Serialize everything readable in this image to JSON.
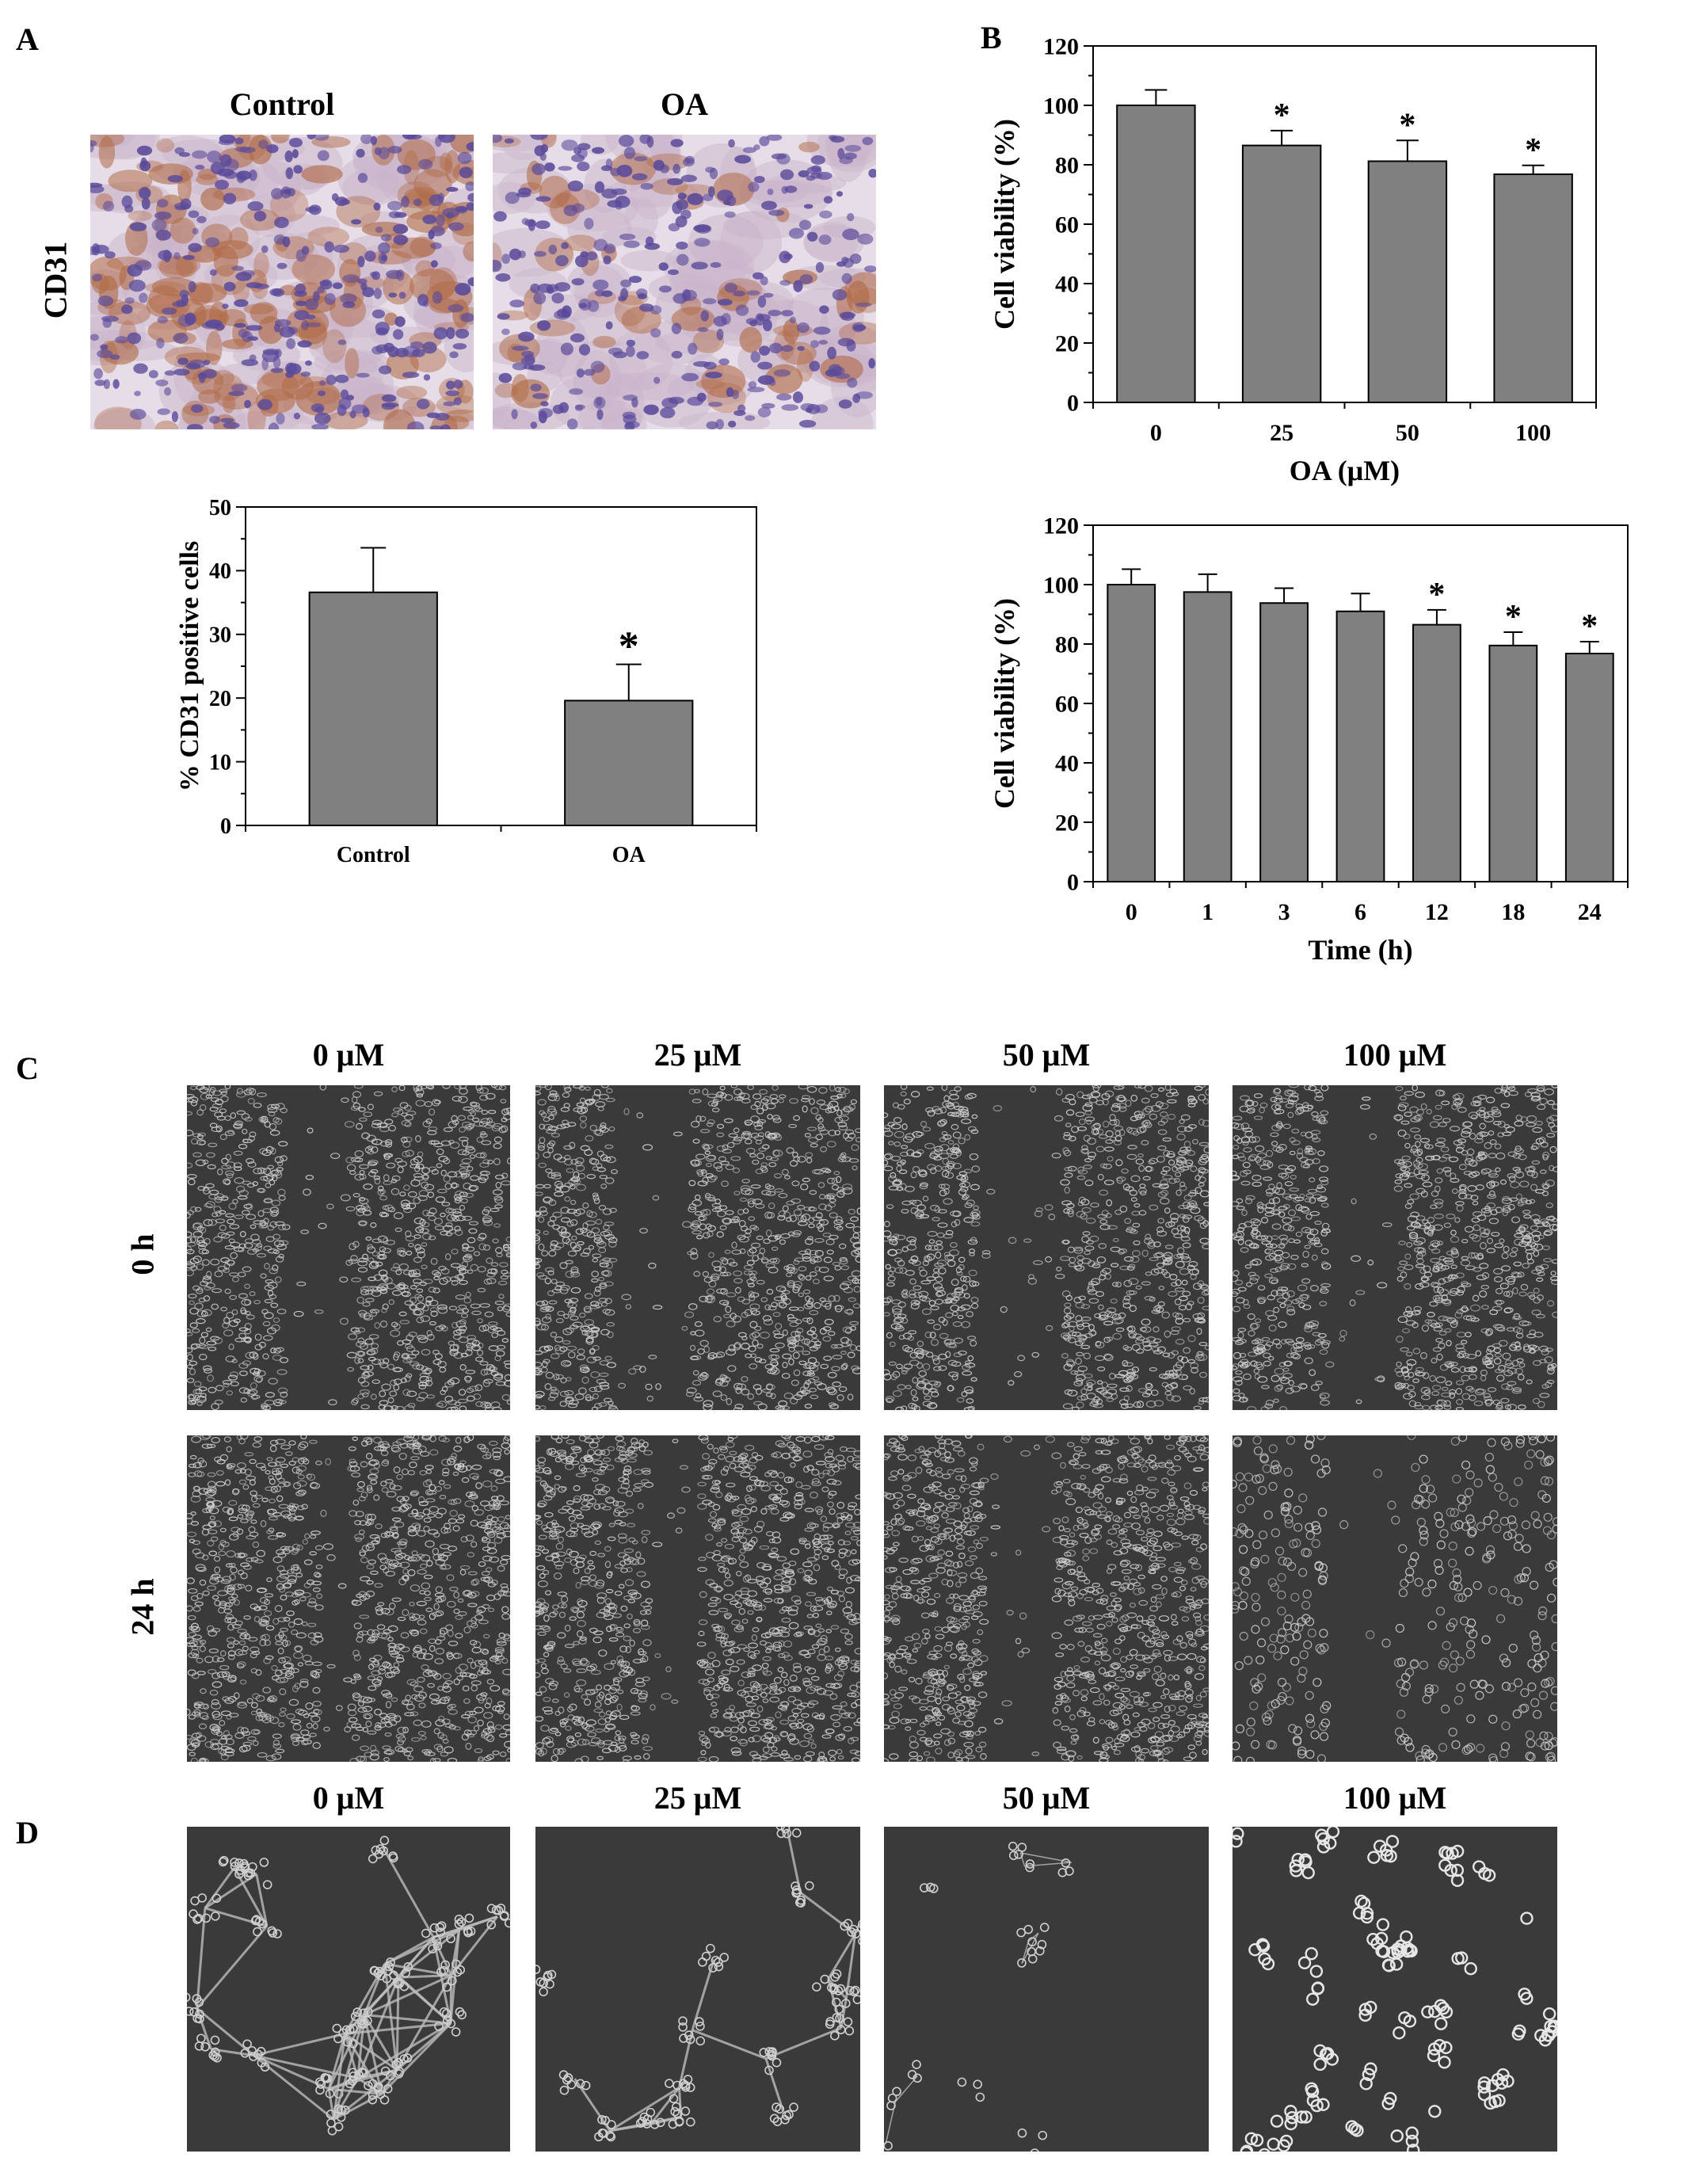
{
  "panels": {
    "a": {
      "letter": "A",
      "col_labels": [
        "Control",
        "OA"
      ],
      "row_label": "CD31"
    },
    "b": {
      "letter": "B"
    },
    "c": {
      "letter": "C",
      "col_labels": [
        "0 μM",
        "25 μM",
        "50 μM",
        "100 μM"
      ],
      "row_labels": [
        "0 h",
        "24 h"
      ]
    },
    "d": {
      "letter": "D",
      "col_labels": [
        "0 μM",
        "25 μM",
        "50 μM",
        "100 μM"
      ]
    }
  },
  "colors": {
    "bar_fill": "#808080",
    "tissue_bg": "#e6dde8",
    "nuclei": "#5a4a9a",
    "brown_stain": "#b06a45",
    "phase_bg": "#3a3a3a",
    "cell": "#cfcfcf"
  },
  "chart_data": [
    {
      "id": "cd31",
      "type": "bar",
      "categories": [
        "Control",
        "OA"
      ],
      "values": [
        36.6,
        19.6
      ],
      "errors": [
        7.0,
        5.7
      ],
      "significant": [
        false,
        true
      ],
      "significance_marker": "*",
      "ylabel": "% CD31 positive cells",
      "xlabel": "",
      "ylim": [
        0,
        50
      ],
      "yticks": [
        0,
        10,
        20,
        30,
        40,
        50
      ]
    },
    {
      "id": "viability-dose",
      "type": "bar",
      "categories": [
        "0",
        "25",
        "50",
        "100"
      ],
      "values": [
        100,
        86.5,
        81.2,
        76.8
      ],
      "errors": [
        5.2,
        5.0,
        7.0,
        3.0
      ],
      "significant": [
        false,
        true,
        true,
        true
      ],
      "significance_marker": "*",
      "ylabel": "Cell  viability (%)",
      "xlabel": "OA (μM)",
      "ylim": [
        0,
        120
      ],
      "yticks": [
        0,
        20,
        40,
        60,
        80,
        100,
        120
      ]
    },
    {
      "id": "viability-time",
      "type": "bar",
      "categories": [
        "0",
        "1",
        "3",
        "6",
        "12",
        "18",
        "24"
      ],
      "values": [
        100,
        97.5,
        93.8,
        91.0,
        86.5,
        79.5,
        76.8
      ],
      "errors": [
        5.2,
        6.0,
        5.0,
        6.0,
        5.0,
        4.5,
        4.0
      ],
      "significant": [
        false,
        false,
        false,
        false,
        true,
        true,
        true
      ],
      "significance_marker": "*",
      "ylabel": "Cell  viability (%)",
      "xlabel": "Time (h)",
      "ylim": [
        0,
        120
      ],
      "yticks": [
        0,
        20,
        40,
        60,
        80,
        100,
        120
      ]
    }
  ]
}
